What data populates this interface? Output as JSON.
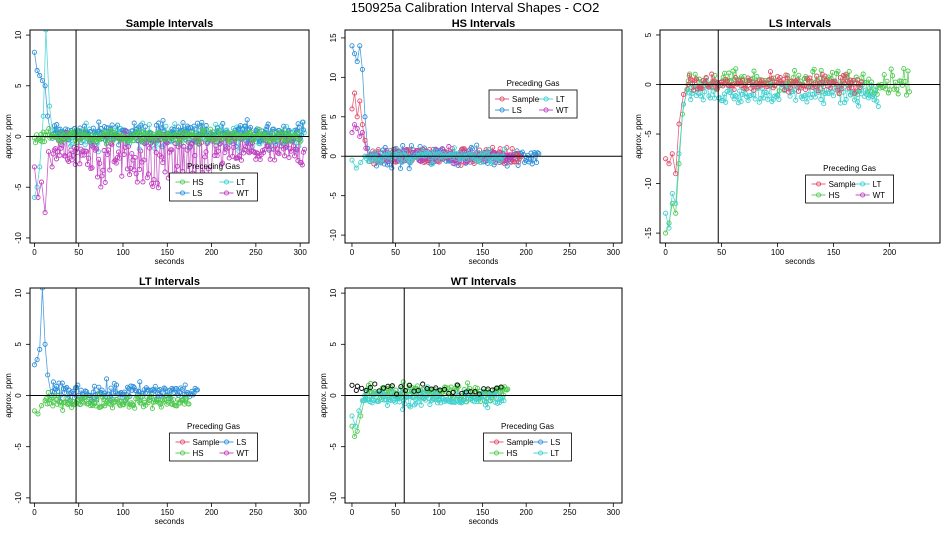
{
  "page_title": "150925a   Calibration Interval Shapes - CO2",
  "colors": {
    "Sample": "#e34a67",
    "HS": "#4ec94e",
    "LS": "#2f8fd8",
    "LT": "#3ed0d0",
    "WT": "#c03fc0",
    "other": "#000000"
  },
  "chart_data": [
    {
      "type": "scatter",
      "title": "Sample Intervals",
      "xlabel": "seconds",
      "ylabel": "approx. ppm",
      "xlim": [
        -5,
        310
      ],
      "ylim": [
        -10.5,
        10.5
      ],
      "xticks": [
        0,
        50,
        100,
        150,
        200,
        250,
        300
      ],
      "yticks": [
        -10,
        -5,
        0,
        5,
        10
      ],
      "vline": 47,
      "hline": 0,
      "legend": {
        "title": "Preceding Gas",
        "position": "center-bottom",
        "entries": [
          "HS",
          "LT",
          "LS",
          "WT"
        ]
      },
      "series": [
        {
          "name": "LT",
          "x_end": 305,
          "spike": [
            [
              0,
              -6
            ],
            [
              3,
              -5
            ],
            [
              6,
              -3
            ],
            [
              10,
              2
            ],
            [
              13,
              10.5
            ],
            [
              17,
              3
            ],
            [
              21,
              0
            ]
          ],
          "mean": 0,
          "noise": 1.1
        },
        {
          "name": "LS",
          "x_end": 305,
          "spike": [
            [
              0,
              8.3
            ],
            [
              3,
              6.5
            ],
            [
              6,
              6
            ],
            [
              9,
              5.5
            ],
            [
              12,
              5
            ],
            [
              15,
              2
            ],
            [
              19,
              0
            ]
          ],
          "mean": 0.3,
          "noise": 1.0
        },
        {
          "name": "WT",
          "x_end": 305,
          "spike": [
            [
              0,
              -3
            ],
            [
              4,
              -6
            ],
            [
              8,
              -4.5
            ],
            [
              12,
              -7.5
            ],
            [
              16,
              -1.5
            ],
            [
              20,
              -3
            ]
          ],
          "mean": -1.5,
          "noise": 1.6,
          "segments": [
            [
              60,
              200,
              -4
            ]
          ]
        },
        {
          "name": "HS",
          "x_end": 300,
          "spike": [],
          "mean": 0,
          "noise": 0.6
        }
      ]
    },
    {
      "type": "scatter",
      "title": "HS Intervals",
      "xlabel": "seconds",
      "ylabel": "approx. ppm",
      "xlim": [
        -8,
        310
      ],
      "ylim": [
        -11,
        16
      ],
      "xticks": [
        0,
        50,
        100,
        150,
        200,
        250,
        300
      ],
      "yticks": [
        -10,
        -5,
        0,
        5,
        10,
        15
      ],
      "vline": 47,
      "hline": 0,
      "legend": {
        "title": "Preceding Gas",
        "position": "top-center",
        "entries": [
          "Sample",
          "LT",
          "LS",
          "WT"
        ]
      },
      "series": [
        {
          "name": "LS",
          "x_end": 215,
          "spike": [
            [
              0,
              14
            ],
            [
              3,
              13
            ],
            [
              6,
              12
            ],
            [
              9,
              14
            ],
            [
              12,
              11
            ],
            [
              15,
              5
            ],
            [
              18,
              1
            ],
            [
              22,
              0
            ]
          ],
          "mean": 0,
          "noise": 1.2
        },
        {
          "name": "Sample",
          "x_end": 195,
          "spike": [
            [
              0,
              6
            ],
            [
              3,
              8
            ],
            [
              6,
              5
            ],
            [
              9,
              7
            ],
            [
              12,
              4
            ],
            [
              15,
              2
            ],
            [
              19,
              0
            ]
          ],
          "mean": 0,
          "noise": 1.1
        },
        {
          "name": "WT",
          "x_end": 185,
          "spike": [
            [
              0,
              3
            ],
            [
              3,
              4
            ],
            [
              6,
              3.5
            ],
            [
              9,
              2.5
            ],
            [
              12,
              3
            ],
            [
              16,
              1
            ],
            [
              20,
              0
            ]
          ],
          "mean": 0,
          "noise": 0.9
        },
        {
          "name": "LT",
          "x_end": 175,
          "spike": [
            [
              0,
              -0.5
            ],
            [
              5,
              -1.5
            ],
            [
              10,
              -0.8
            ],
            [
              15,
              0
            ]
          ],
          "mean": 0,
          "noise": 0.7
        }
      ]
    },
    {
      "type": "scatter",
      "title": "LS Intervals",
      "xlabel": "seconds",
      "ylabel": "approx. ppm",
      "xlim": [
        -5,
        245
      ],
      "ylim": [
        -16,
        5.5
      ],
      "xticks": [
        0,
        50,
        100,
        150,
        200
      ],
      "yticks": [
        -15,
        -10,
        -5,
        0,
        5
      ],
      "vline": 47,
      "hline": 0,
      "legend": {
        "title": "Preceding Gas",
        "position": "bottom-right",
        "entries": [
          "Sample",
          "LT",
          "HS",
          "WT"
        ]
      },
      "series": [
        {
          "name": "HS",
          "x_end": 218,
          "spike": [
            [
              0,
              -15
            ],
            [
              3,
              -14
            ],
            [
              6,
              -12
            ],
            [
              9,
              -13
            ],
            [
              12,
              -8
            ],
            [
              15,
              -3
            ],
            [
              19,
              -0.5
            ]
          ],
          "mean": 0.3,
          "noise": 1.2
        },
        {
          "name": "LT",
          "x_end": 190,
          "spike": [
            [
              0,
              -13
            ],
            [
              3,
              -14.5
            ],
            [
              6,
              -11
            ],
            [
              9,
              -12
            ],
            [
              12,
              -7
            ],
            [
              16,
              -2
            ],
            [
              20,
              -0.5
            ]
          ],
          "mean": -0.8,
          "noise": 1.1
        },
        {
          "name": "Sample",
          "x_end": 175,
          "spike": [
            [
              0,
              -7.5
            ],
            [
              3,
              -8
            ],
            [
              6,
              -7
            ],
            [
              9,
              -9
            ],
            [
              12,
              -4
            ],
            [
              16,
              -1
            ],
            [
              20,
              0
            ]
          ],
          "mean": 0,
          "noise": 1.0
        }
      ]
    },
    {
      "type": "scatter",
      "title": "LT Intervals",
      "xlabel": "seconds",
      "ylabel": "approx. ppm",
      "xlim": [
        -5,
        310
      ],
      "ylim": [
        -10.5,
        10.5
      ],
      "xticks": [
        0,
        50,
        100,
        150,
        200,
        250,
        300
      ],
      "yticks": [
        -10,
        -5,
        0,
        5,
        10
      ],
      "vline": 47,
      "hline": 0,
      "legend": {
        "title": "Preceding Gas",
        "position": "center-bottom",
        "entries": [
          "Sample",
          "LS",
          "HS",
          "WT"
        ]
      },
      "series": [
        {
          "name": "LS",
          "x_end": 185,
          "spike": [
            [
              0,
              3
            ],
            [
              3,
              3.5
            ],
            [
              6,
              4.5
            ],
            [
              9,
              10.5
            ],
            [
              12,
              5
            ],
            [
              15,
              2
            ],
            [
              19,
              0
            ]
          ],
          "mean": 0.3,
          "noise": 0.9
        },
        {
          "name": "HS",
          "x_end": 175,
          "spike": [
            [
              0,
              -1.5
            ],
            [
              4,
              -1.8
            ],
            [
              8,
              -1
            ],
            [
              12,
              -0.5
            ]
          ],
          "mean": -0.6,
          "noise": 0.6
        }
      ]
    },
    {
      "type": "scatter",
      "title": "WT Intervals",
      "xlabel": "seconds",
      "ylabel": "approx. ppm",
      "xlim": [
        -8,
        310
      ],
      "ylim": [
        -10.5,
        10.5
      ],
      "xticks": [
        0,
        50,
        100,
        150,
        200,
        250,
        300
      ],
      "yticks": [
        -10,
        -5,
        0,
        5,
        10
      ],
      "vline": 60,
      "hline": 0,
      "legend": {
        "title": "Preceding Gas",
        "position": "center-bottom",
        "entries": [
          "Sample",
          "LS",
          "HS",
          "LT"
        ]
      },
      "series": [
        {
          "name": "HS",
          "x_end": 180,
          "spike": [
            [
              0,
              -3
            ],
            [
              3,
              -4
            ],
            [
              6,
              -3.5
            ],
            [
              10,
              -2
            ],
            [
              14,
              -0.5
            ]
          ],
          "mean": 0.3,
          "noise": 0.9
        },
        {
          "name": "LT",
          "x_end": 175,
          "spike": [
            [
              0,
              -2
            ],
            [
              4,
              -3
            ],
            [
              8,
              -1.5
            ],
            [
              12,
              -0.5
            ]
          ],
          "mean": -0.3,
          "noise": 0.8
        },
        {
          "name": "other",
          "x_end": 175,
          "spike": [
            [
              0,
              1
            ],
            [
              5,
              0.5
            ]
          ],
          "mean": 0.6,
          "noise": 0.6,
          "sparse": true
        }
      ]
    }
  ]
}
